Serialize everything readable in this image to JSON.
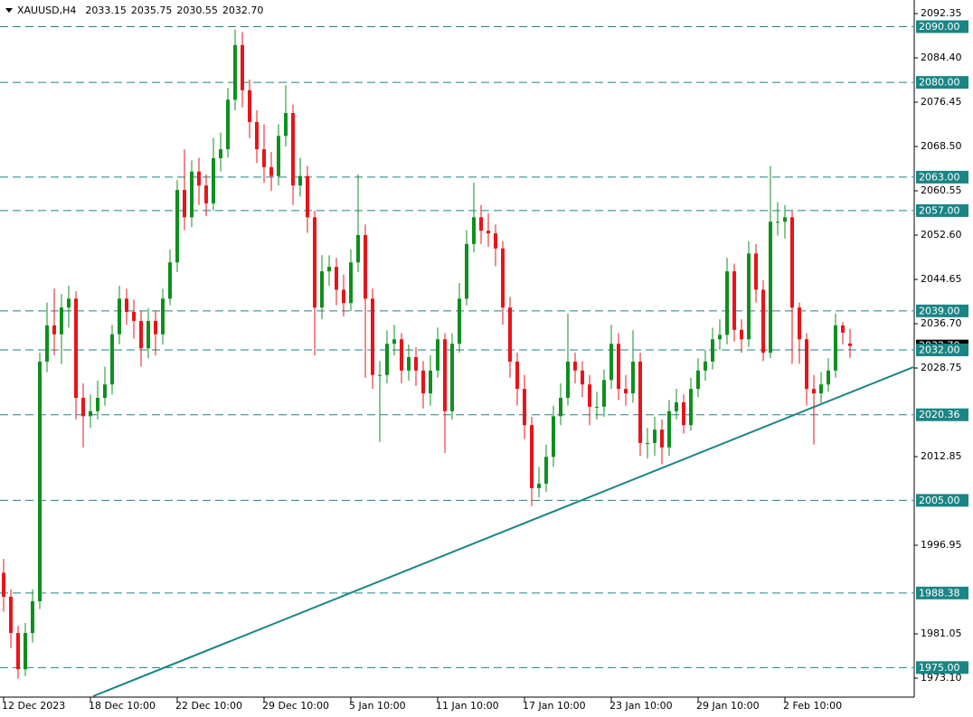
{
  "chart_data": {
    "type": "candlestick",
    "title": "XAUUSD,H4",
    "ohlc": [
      2033.15,
      2035.75,
      2030.55,
      2032.7
    ],
    "ohlc_labels": [
      "2033.15",
      "2035.75",
      "2030.55",
      "2032.70"
    ],
    "x_labels": [
      "12 Dec 2023",
      "18 Dec 10:00",
      "22 Dec 10:00",
      "29 Dec 10:00",
      "5 Jan 10:00",
      "11 Jan 10:00",
      "17 Jan 10:00",
      "23 Jan 10:00",
      "29 Jan 10:00",
      "2 Feb 10:00"
    ],
    "open": [
      1992.0,
      1987.7,
      1981.2,
      1974.7,
      1981.2,
      1986.9,
      2029.9,
      2036.4,
      2034.8,
      2039.6,
      2041.2,
      2023.4,
      2020.1,
      2021.0,
      2023.4,
      2025.8,
      2034.8,
      2041.2,
      2038.8,
      2037.2,
      2032.3,
      2037.2,
      2034.8,
      2041.2,
      2047.7,
      2060.7,
      2055.8,
      2064.0,
      2061.5,
      2058.3,
      2066.4,
      2068.0,
      2076.9,
      2086.7,
      2078.6,
      2072.9,
      2068.0,
      2064.8,
      2063.2,
      2070.4,
      2074.5,
      2061.5,
      2063.2,
      2055.8,
      2039.6,
      2046.1,
      2046.9,
      2042.8,
      2040.4,
      2047.7,
      2052.6,
      2041.2,
      2027.5,
      2027.5,
      2033.1,
      2033.9,
      2028.3,
      2030.7,
      2028.3,
      2024.2,
      2028.3,
      2033.9,
      2021.0,
      2033.1,
      2041.2,
      2051.0,
      2055.8,
      2053.4,
      2052.9,
      2050.2,
      2039.6,
      2029.9,
      2025.0,
      2018.5,
      2007.2,
      2008.0,
      2012.8,
      2020.1,
      2023.4,
      2029.9,
      2028.3,
      2025.8,
      2021.8,
      2021.8,
      2026.6,
      2033.1,
      2025.0,
      2024.2,
      2029.9,
      2015.3,
      2015.3,
      2017.7,
      2014.5,
      2021.0,
      2022.6,
      2018.5,
      2025.0,
      2028.3,
      2029.9,
      2033.9,
      2034.7,
      2046.1,
      2035.6,
      2033.9,
      2049.3,
      2042.8,
      2031.5,
      2055.0,
      2055.0,
      2055.8,
      2039.6,
      2033.9,
      2025.0,
      2024.2,
      2025.8,
      2028.3,
      2036.4,
      2033.15
    ],
    "high": [
      1994.5,
      1989.0,
      1982.5,
      1983.0,
      1989.0,
      2031.5,
      2040.5,
      2043.0,
      2042.0,
      2043.5,
      2042.5,
      2026.0,
      2024.0,
      2026.5,
      2029.0,
      2036.5,
      2043.5,
      2043.0,
      2041.0,
      2039.0,
      2039.5,
      2039.0,
      2043.0,
      2050.0,
      2062.5,
      2068.0,
      2066.0,
      2066.5,
      2063.5,
      2070.0,
      2071.0,
      2079.0,
      2089.5,
      2089.0,
      2080.5,
      2075.0,
      2072.5,
      2067.5,
      2072.5,
      2079.5,
      2076.0,
      2066.5,
      2065.0,
      2057.0,
      2049.0,
      2049.0,
      2048.5,
      2045.5,
      2050.0,
      2063.5,
      2054.5,
      2043.0,
      2030.0,
      2035.5,
      2036.5,
      2035.0,
      2033.0,
      2032.5,
      2030.0,
      2031.0,
      2036.0,
      2035.0,
      2035.0,
      2044.0,
      2053.5,
      2062.0,
      2058.0,
      2056.5,
      2054.5,
      2051.5,
      2041.5,
      2031.5,
      2027.5,
      2020.0,
      2011.0,
      2015.0,
      2022.0,
      2026.0,
      2038.5,
      2031.5,
      2030.0,
      2027.5,
      2024.5,
      2028.5,
      2036.5,
      2035.0,
      2027.5,
      2035.5,
      2031.5,
      2018.0,
      2020.0,
      2019.5,
      2023.0,
      2025.0,
      2024.0,
      2027.0,
      2030.5,
      2032.0,
      2036.0,
      2037.5,
      2048.5,
      2047.5,
      2037.5,
      2051.5,
      2051.0,
      2044.5,
      2065.0,
      2058.5,
      2058.0,
      2057.0,
      2040.5,
      2035.0,
      2027.5,
      2028.0,
      2030.5,
      2038.5,
      2037.0,
      2035.75
    ],
    "low": [
      1985.0,
      1978.5,
      1973.0,
      1973.5,
      1979.5,
      1985.5,
      2028.0,
      2031.0,
      2029.5,
      2036.0,
      2019.5,
      2014.5,
      2018.0,
      2019.5,
      2022.0,
      2024.0,
      2033.0,
      2036.5,
      2034.0,
      2029.0,
      2030.5,
      2031.0,
      2033.0,
      2040.0,
      2046.0,
      2053.5,
      2054.0,
      2058.0,
      2056.0,
      2057.0,
      2064.0,
      2066.5,
      2075.0,
      2075.5,
      2070.0,
      2065.5,
      2062.0,
      2060.5,
      2061.5,
      2068.5,
      2058.0,
      2059.5,
      2053.0,
      2031.0,
      2037.5,
      2043.5,
      2040.0,
      2038.0,
      2039.0,
      2046.0,
      2027.0,
      2025.0,
      2015.5,
      2026.0,
      2031.0,
      2026.0,
      2026.5,
      2025.5,
      2021.5,
      2022.0,
      2027.0,
      2013.5,
      2019.5,
      2031.5,
      2040.0,
      2049.5,
      2051.0,
      2050.5,
      2047.0,
      2036.5,
      2027.0,
      2022.0,
      2016.0,
      2004.0,
      2005.5,
      2006.5,
      2011.0,
      2018.5,
      2022.0,
      2026.0,
      2023.5,
      2018.5,
      2019.5,
      2020.0,
      2025.0,
      2023.0,
      2022.0,
      2022.5,
      2013.0,
      2012.5,
      2013.0,
      2011.5,
      2013.0,
      2019.5,
      2017.0,
      2017.5,
      2023.5,
      2026.5,
      2028.5,
      2032.0,
      2033.0,
      2033.5,
      2031.5,
      2032.5,
      2040.5,
      2030.0,
      2030.5,
      2052.5,
      2052.0,
      2029.5,
      2029.5,
      2022.0,
      2015.0,
      2022.5,
      2024.5,
      2027.0,
      2033.0,
      2030.55
    ],
    "close": [
      1987.7,
      1981.2,
      1974.7,
      1981.2,
      1986.9,
      2029.9,
      2036.4,
      2034.8,
      2039.6,
      2041.2,
      2023.4,
      2020.1,
      2021.0,
      2023.4,
      2025.8,
      2034.8,
      2041.2,
      2038.8,
      2037.2,
      2032.3,
      2037.2,
      2034.8,
      2041.2,
      2047.7,
      2060.7,
      2055.8,
      2064.0,
      2061.5,
      2058.3,
      2066.4,
      2068.0,
      2076.9,
      2086.7,
      2078.6,
      2072.9,
      2068.0,
      2064.8,
      2063.2,
      2070.4,
      2074.5,
      2061.5,
      2063.2,
      2055.8,
      2039.6,
      2046.1,
      2046.9,
      2042.8,
      2040.4,
      2047.7,
      2052.6,
      2041.2,
      2027.5,
      2027.5,
      2033.1,
      2033.9,
      2028.3,
      2030.7,
      2028.3,
      2024.2,
      2028.3,
      2033.9,
      2021.0,
      2033.1,
      2041.2,
      2051.0,
      2055.8,
      2053.4,
      2052.9,
      2050.2,
      2039.6,
      2029.9,
      2025.0,
      2018.5,
      2007.2,
      2008.0,
      2012.8,
      2020.1,
      2023.4,
      2029.9,
      2028.3,
      2025.8,
      2021.8,
      2021.8,
      2026.6,
      2033.1,
      2025.0,
      2024.2,
      2029.9,
      2015.3,
      2015.3,
      2017.7,
      2014.5,
      2021.0,
      2022.6,
      2018.5,
      2025.0,
      2028.3,
      2029.9,
      2033.9,
      2034.7,
      2046.1,
      2035.6,
      2033.9,
      2049.3,
      2042.8,
      2031.5,
      2055.0,
      2055.0,
      2055.8,
      2039.6,
      2033.9,
      2025.0,
      2024.2,
      2025.8,
      2028.3,
      2036.4,
      2035.1,
      2032.7
    ],
    "up_color": "#0f8f1f",
    "down_color": "#e8141a",
    "ylim": [
      1969.86,
      2094.3
    ],
    "yticks": [
      2092.35,
      {
        "value": 2084.4,
        "label": "2084.40"
      },
      2076.45,
      {
        "value": 2068.5,
        "label": "2068.50"
      },
      2060.55,
      {
        "value": 2052.6,
        "label": "2052.60"
      },
      2044.65,
      {
        "value": 2036.7,
        "label": "2036.70"
      },
      2028.75,
      2012.85,
      1996.95,
      1981.05,
      {
        "value": 1973.1,
        "label": "1973.10"
      }
    ],
    "levels": [
      {
        "value": 2090,
        "label": "2090.00"
      },
      {
        "value": 2080,
        "label": "2080.00"
      },
      {
        "value": 2063,
        "label": "2063.00"
      },
      {
        "value": 2057,
        "label": "2057.00"
      },
      {
        "value": 2039,
        "label": "2039.00"
      },
      {
        "value": 2032,
        "label": "2032.00"
      },
      2020.36,
      {
        "value": 2005,
        "label": "2005.00"
      },
      1988.38,
      {
        "value": 1975,
        "label": "1975.00"
      }
    ],
    "level_color": "#1b8585",
    "trendline": {
      "bars": [
        12.375,
        125.75
      ],
      "prices": [
        1969.86,
        2028.91
      ],
      "color": "#1b8585"
    }
  }
}
